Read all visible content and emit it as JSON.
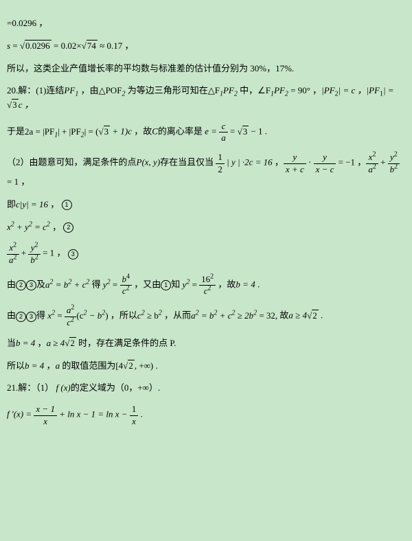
{
  "l1": "=0.0296 ，",
  "l2a": "s",
  "l2b": " = ",
  "l2c": "0.0296",
  "l2d": " = 0.02×",
  "l2e": "74",
  "l2f": " ≈ 0.17 ，",
  "l3": "所以，这类企业产值增长率的平均数与标准差的估计值分别为 30%，17%.",
  "l4a": "20.解：(1)连结",
  "l4b": "PF",
  "l4c": "1",
  "l4d": " ，由",
  "l4e": "△POF",
  "l4f": "2",
  "l4g": " 为等边三角形可知在",
  "l4h": "△F",
  "l4i": "1",
  "l4j": "PF",
  "l4k": "2",
  "l4l": " 中，",
  "l4m": "∠F",
  "l4n": "1",
  "l4o": "PF",
  "l4p": "2",
  "l4q": " = 90° ，",
  "l4r": "|PF",
  "l4s": "2",
  "l4t": "| = c ，|PF",
  "l4u": "1",
  "l4v": "| = ",
  "l4w": "3",
  "l4x": "c ，",
  "l5a": "于是",
  "l5b": "2a = |PF",
  "l5c": "1",
  "l5d": "| + |PF",
  "l5e": "2",
  "l5f": "| = (",
  "l5g": "3",
  "l5h": " + 1)c ",
  "l5i": "，故",
  "l5j": "C",
  "l5k": "的离心率是 ",
  "l5l": "e = ",
  "l5m_n": "c",
  "l5m_d": "a",
  "l5n": " = ",
  "l5o": "3",
  "l5p": " − 1",
  "l5q": "  .",
  "l6a": "（2）由题意可知，满足条件的点",
  "l6b": "P(x, y)",
  "l6c": "存在当且仅当 ",
  "l6d_n": "1",
  "l6d_d": "2",
  "l6e": " | y | ·2c = 16 ",
  "l6f": "  ，",
  "l6g_n": "y",
  "l6g_d": "x + c",
  "l6h": " · ",
  "l6i_n": "y",
  "l6i_d": "x − c",
  "l6j": " = −1 ",
  "l6k": "  ，",
  "l6l_n1": "x",
  "l6l_d1": "a",
  "l6m": " + ",
  "l6n_n": "y",
  "l6n_d": "b",
  "l6o": " = 1 ",
  "l6p": "，",
  "l7a": "即",
  "l7b": "c|y| = 16 ",
  "l7c": "，",
  "l7d": "1",
  "l8a": "x",
  "l8b": " + y",
  "l8c": " = c",
  "l8d": " ",
  "l8e": "，",
  "l8f": "2",
  "l9a_n": "x",
  "l9a_d": "a",
  "l9b": " + ",
  "l9c_n": "y",
  "l9c_d": "b",
  "l9d": " = 1 ",
  "l9e": "，",
  "l9f": "3",
  "l10a": "由",
  "l10b": "2",
  "l10c": "3",
  "l10d": "及",
  "l10e": "a",
  "l10f": " = b",
  "l10g": " + c",
  "l10h": " 得 ",
  "l10i": "y",
  "l10j": " = ",
  "l10k_n": "b",
  "l10k_d": "c",
  "l10l": " ",
  "l10m": "，又由",
  "l10n": "1",
  "l10o": "知 ",
  "l10p": "y",
  "l10q": " = ",
  "l10r_n": "16",
  "l10r_d": "c",
  "l10s": " ",
  "l10t": "，故",
  "l10u": "b = 4 ",
  "l10v": ".",
  "l11a": "由",
  "l11b": "2",
  "l11c": "3",
  "l11d": "得 ",
  "l11e": "x",
  "l11f": " = ",
  "l11g_n": "a",
  "l11g_d": "c",
  "l11h": "(c",
  "l11i": " − b",
  "l11j": ") ",
  "l11k": "，所以",
  "l11l": "c",
  "l11m": " ≥ b",
  "l11n": " ",
  "l11o": "，从而",
  "l11p": "a",
  "l11q": " = b",
  "l11r": " + c",
  "l11s": " ≥ 2b",
  "l11t": " = 32, ",
  "l11u": "故",
  "l11v": "a ≥ 4",
  "l11w": "2",
  "l11x": " .",
  "l12a": "当",
  "l12b": "b = 4 ",
  "l12c": "，",
  "l12d": "a ≥ 4",
  "l12e": "2",
  "l12f": " 时，存在满足条件的点 P.",
  "l13a": "所以",
  "l13b": "b = 4 ",
  "l13c": "，",
  "l13d": "a",
  "l13e": " 的取值范围为",
  "l13f": "[4",
  "l13g": "2",
  "l13h": ", +∞)",
  "l13i": " .",
  "l14a": "21.解：（1） ",
  "l14b": "f (x)",
  "l14c": "的定义域为（0，+∞）.",
  "l15a": "f ′(x) = ",
  "l15b_n": "x − 1",
  "l15b_d": "x",
  "l15c": " + ln x − 1 = ln x − ",
  "l15d_n": "1",
  "l15d_d": "x",
  "l15e": " ."
}
